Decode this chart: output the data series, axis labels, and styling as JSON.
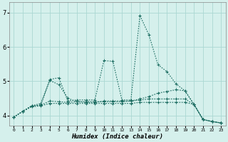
{
  "xlabel": "Humidex (Indice chaleur)",
  "bg_color": "#d5f0ec",
  "grid_color": "#aad8d2",
  "line_color": "#1a6b60",
  "ylim": [
    3.7,
    7.3
  ],
  "xlim": [
    -0.5,
    23.5
  ],
  "yticks": [
    4,
    5,
    6,
    7
  ],
  "x_ticks": [
    0,
    1,
    2,
    3,
    4,
    5,
    6,
    7,
    8,
    9,
    10,
    11,
    12,
    13,
    14,
    15,
    16,
    17,
    18,
    19,
    20,
    21,
    22,
    23
  ],
  "line1_y": [
    3.95,
    4.12,
    4.28,
    4.35,
    5.05,
    5.1,
    4.42,
    4.45,
    4.45,
    4.45,
    5.6,
    5.58,
    4.45,
    4.45,
    6.92,
    6.35,
    5.48,
    5.28,
    4.92,
    4.72,
    4.32,
    3.88,
    3.82,
    3.78
  ],
  "line2_y": [
    3.95,
    4.12,
    4.28,
    4.3,
    5.02,
    4.9,
    4.5,
    4.4,
    4.38,
    4.38,
    4.42,
    4.42,
    4.42,
    4.42,
    4.48,
    4.55,
    4.65,
    4.7,
    4.75,
    4.72,
    4.32,
    3.88,
    3.82,
    3.78
  ],
  "line3_y": [
    3.95,
    4.12,
    4.28,
    4.3,
    4.42,
    4.4,
    4.38,
    4.4,
    4.4,
    4.4,
    4.4,
    4.4,
    4.4,
    4.42,
    4.45,
    4.48,
    4.48,
    4.48,
    4.48,
    4.48,
    4.32,
    3.88,
    3.82,
    3.78
  ],
  "line4_y": [
    3.95,
    4.12,
    4.25,
    4.28,
    4.35,
    4.35,
    4.35,
    4.35,
    4.35,
    4.35,
    4.35,
    4.35,
    4.35,
    4.35,
    4.38,
    4.38,
    4.38,
    4.38,
    4.38,
    4.38,
    4.32,
    3.88,
    3.82,
    3.78
  ]
}
